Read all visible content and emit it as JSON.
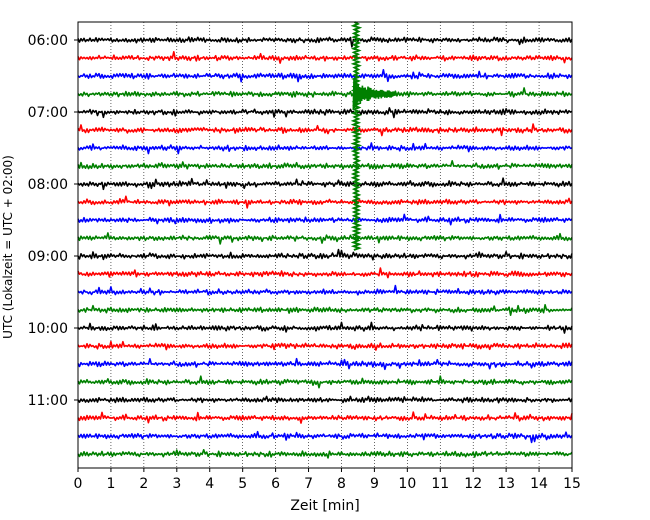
{
  "chart_data": {
    "type": "line",
    "title": "",
    "xlabel": "Zeit  [min]",
    "ylabel": "UTC (Lokalzeit = UTC + 02:00)",
    "xlim": [
      0,
      15
    ],
    "x_ticks": [
      "0",
      "1",
      "2",
      "3",
      "4",
      "5",
      "6",
      "7",
      "8",
      "9",
      "10",
      "11",
      "12",
      "13",
      "14",
      "15"
    ],
    "y_ticks": [
      "06:00",
      "07:00",
      "08:00",
      "09:00",
      "10:00",
      "11:00"
    ],
    "grid": "vertical dotted",
    "row_interval_minutes": 15,
    "start_time": "06:00",
    "end_time": "11:59",
    "rows": [
      {
        "time": "06:00",
        "color": "#000000"
      },
      {
        "time": "06:15",
        "color": "#ff0000"
      },
      {
        "time": "06:30",
        "color": "#0000ff"
      },
      {
        "time": "06:45",
        "color": "#008000"
      },
      {
        "time": "07:00",
        "color": "#000000"
      },
      {
        "time": "07:15",
        "color": "#ff0000"
      },
      {
        "time": "07:30",
        "color": "#0000ff"
      },
      {
        "time": "07:45",
        "color": "#008000"
      },
      {
        "time": "08:00",
        "color": "#000000"
      },
      {
        "time": "08:15",
        "color": "#ff0000"
      },
      {
        "time": "08:30",
        "color": "#0000ff"
      },
      {
        "time": "08:45",
        "color": "#008000"
      },
      {
        "time": "09:00",
        "color": "#000000"
      },
      {
        "time": "09:15",
        "color": "#ff0000"
      },
      {
        "time": "09:30",
        "color": "#0000ff"
      },
      {
        "time": "09:45",
        "color": "#008000"
      },
      {
        "time": "10:00",
        "color": "#000000"
      },
      {
        "time": "10:15",
        "color": "#ff0000"
      },
      {
        "time": "10:30",
        "color": "#0000ff"
      },
      {
        "time": "10:45",
        "color": "#008000"
      },
      {
        "time": "11:00",
        "color": "#000000"
      },
      {
        "time": "11:15",
        "color": "#ff0000"
      },
      {
        "time": "11:30",
        "color": "#0000ff"
      },
      {
        "time": "11:45",
        "color": "#008000"
      }
    ],
    "event": {
      "minute": 8.45,
      "color": "#008000",
      "start_row": "06:45",
      "spans_rows_from": "06:00",
      "spans_rows_to": "08:45"
    }
  }
}
